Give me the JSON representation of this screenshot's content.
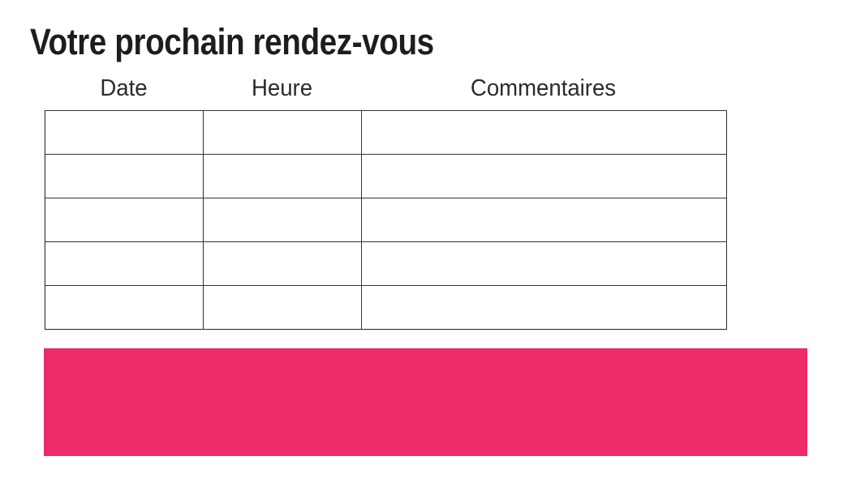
{
  "page": {
    "title": "Votre prochain rendez-vous",
    "background": "#ffffff"
  },
  "table": {
    "columns": [
      {
        "label": "Date"
      },
      {
        "label": "Heure"
      },
      {
        "label": "Commentaires"
      }
    ],
    "rows": [
      [
        "",
        "",
        ""
      ],
      [
        "",
        "",
        ""
      ],
      [
        "",
        "",
        ""
      ],
      [
        "",
        "",
        ""
      ],
      [
        "",
        "",
        ""
      ]
    ]
  },
  "banner": {
    "text": ""
  },
  "colors": {
    "accent_pink": "#ED2B68",
    "table_border": "#333333",
    "title_text": "#1d1d1b",
    "header_text": "#2b2b2b"
  }
}
